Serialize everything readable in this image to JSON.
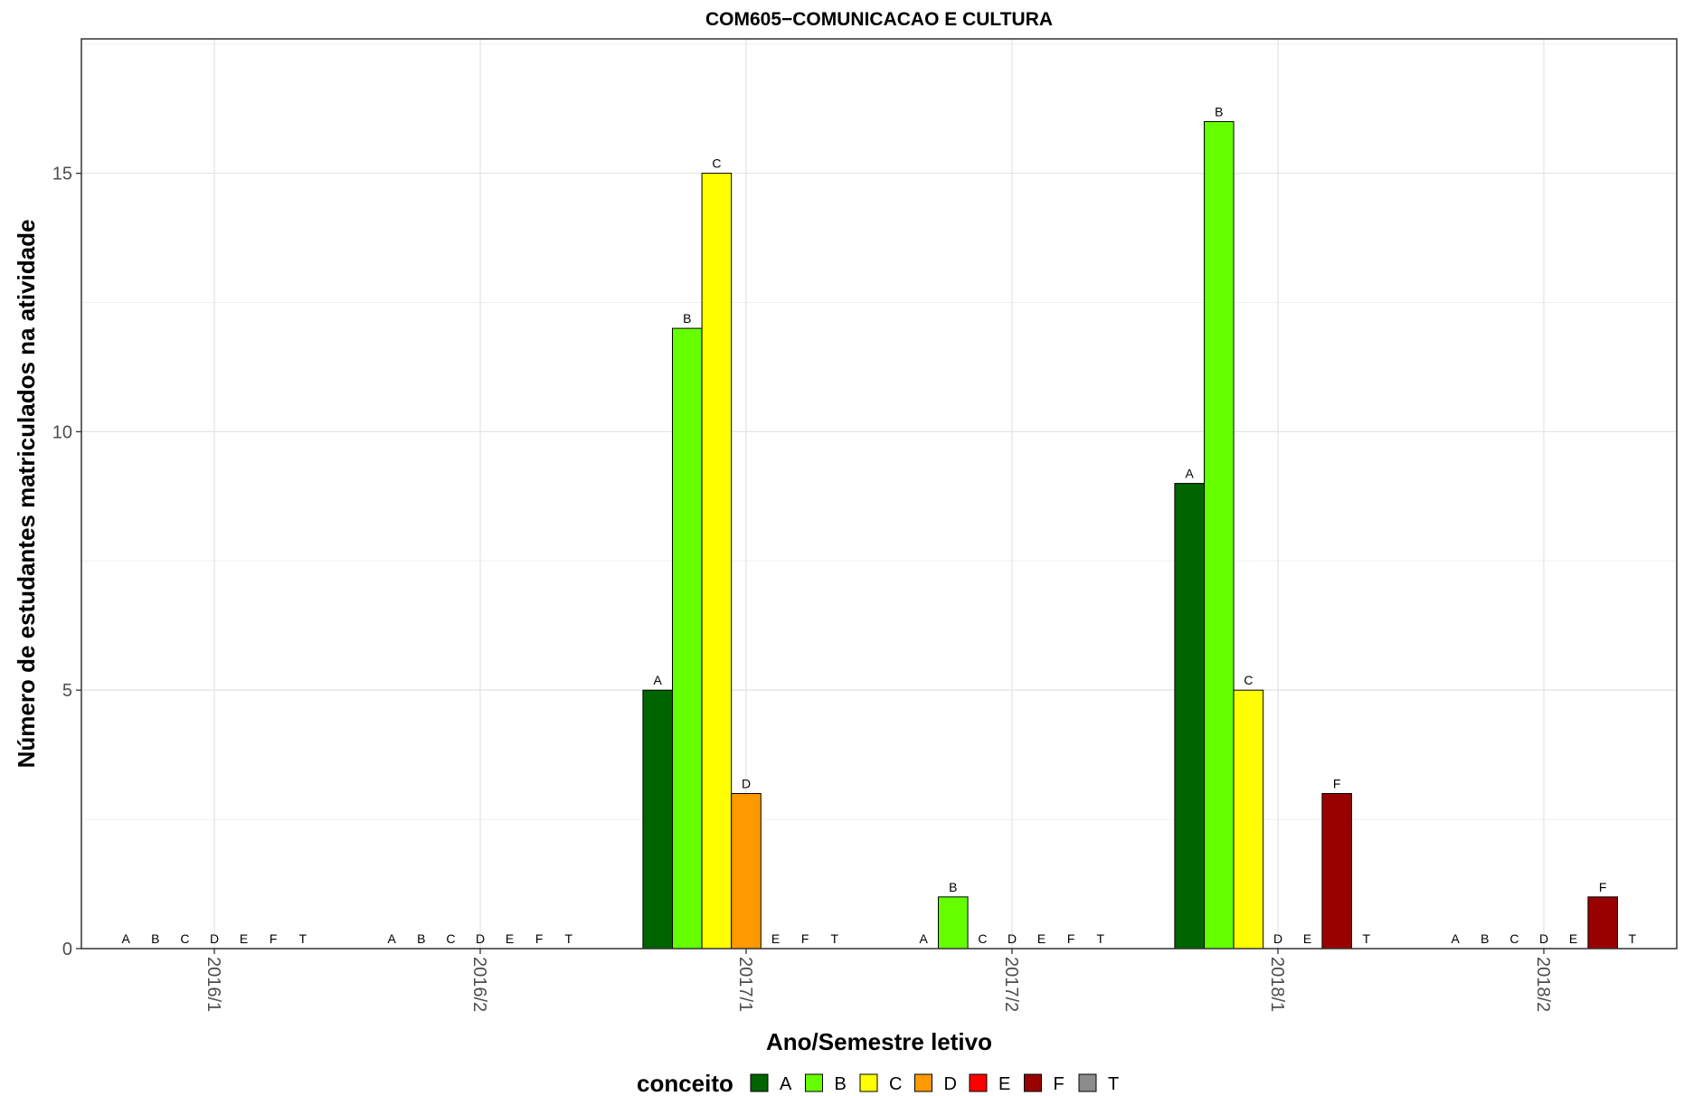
{
  "chart_data": {
    "type": "bar",
    "title": "COM605−COMUNICACAO E CULTURA",
    "xlabel": "Ano/Semestre letivo",
    "ylabel": "Número de estudantes matriculados na atividade",
    "categories": [
      "2016/1",
      "2016/2",
      "2017/1",
      "2017/2",
      "2018/1",
      "2018/2"
    ],
    "ylim": [
      0,
      17.6
    ],
    "y_ticks": [
      0,
      5,
      10,
      15
    ],
    "grid": true,
    "legend": {
      "title": "conceito",
      "position": "bottom"
    },
    "series": [
      {
        "name": "A",
        "color": "#006400",
        "values": [
          0,
          0,
          5,
          0,
          9,
          0
        ]
      },
      {
        "name": "B",
        "color": "#66FF00",
        "values": [
          0,
          0,
          12,
          1,
          16,
          0
        ]
      },
      {
        "name": "C",
        "color": "#FFFF00",
        "values": [
          0,
          0,
          15,
          0,
          5,
          0
        ]
      },
      {
        "name": "D",
        "color": "#FF9900",
        "values": [
          0,
          0,
          3,
          0,
          0,
          0
        ]
      },
      {
        "name": "E",
        "color": "#FF0000",
        "values": [
          0,
          0,
          0,
          0,
          0,
          0
        ]
      },
      {
        "name": "F",
        "color": "#990000",
        "values": [
          0,
          0,
          0,
          0,
          3,
          1
        ]
      },
      {
        "name": "T",
        "color": "#8C8C8C",
        "values": [
          0,
          0,
          0,
          0,
          0,
          0
        ]
      }
    ]
  }
}
